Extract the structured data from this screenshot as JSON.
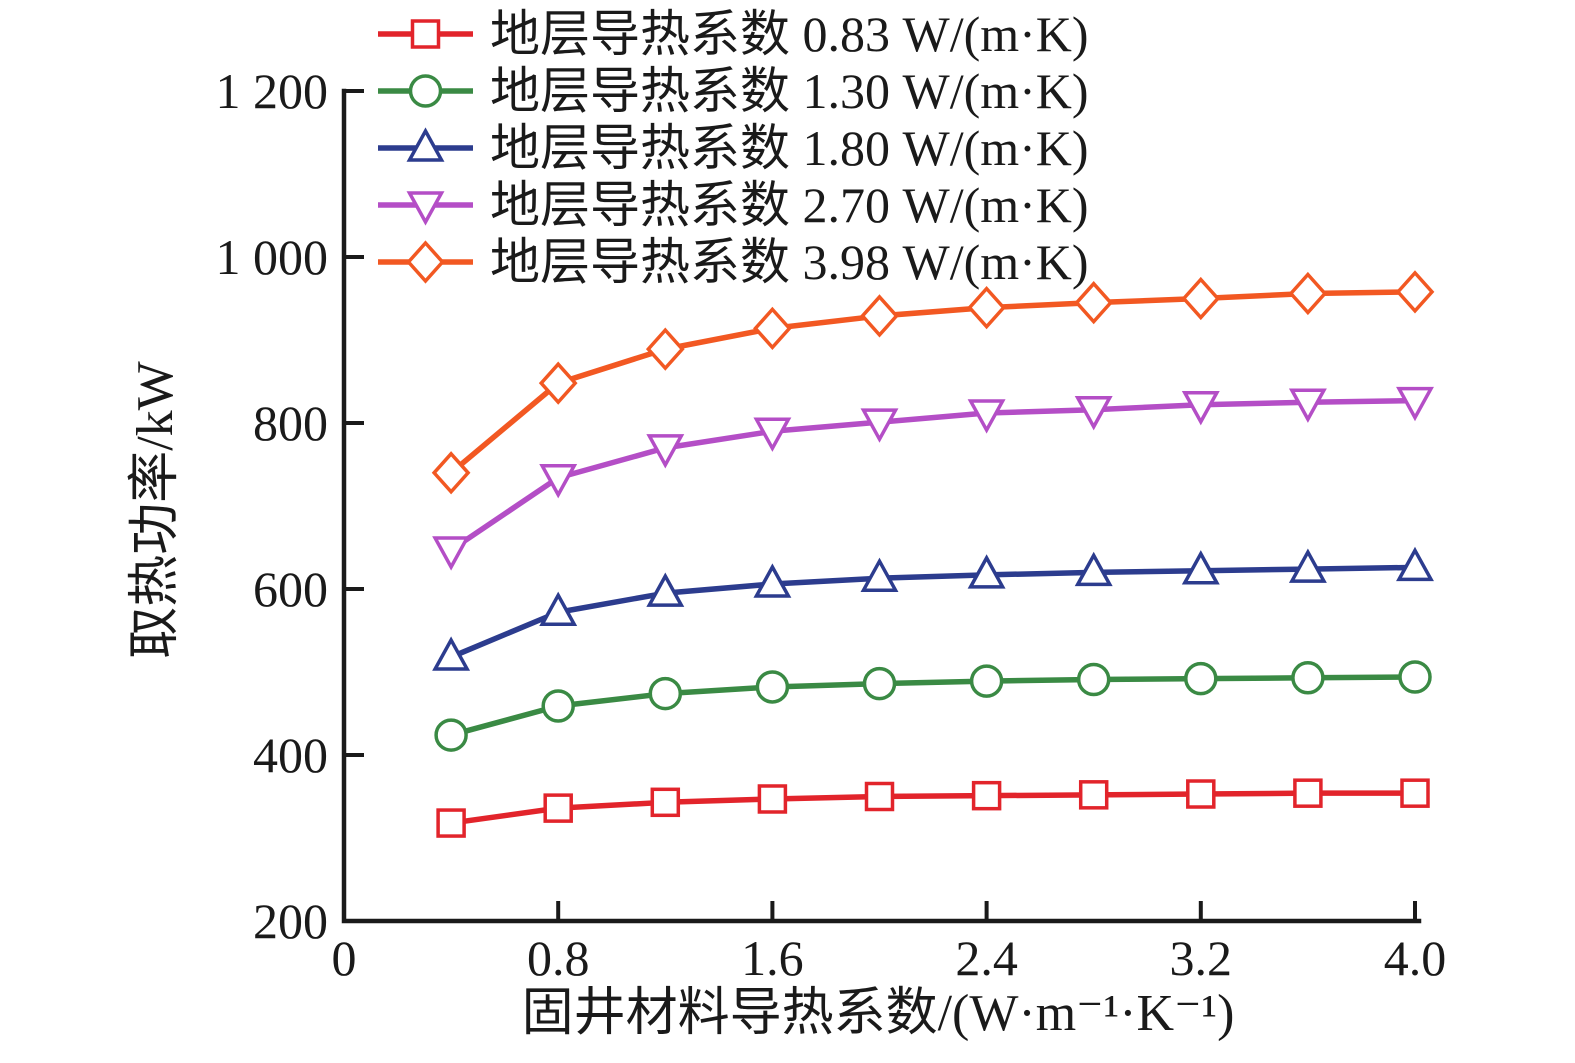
{
  "figure": {
    "background": "#ffffff",
    "axis_color": "#1a1a1a"
  },
  "chart_data": {
    "type": "line",
    "title": "",
    "xlabel": "固井材料导热系数/(W·m⁻¹·K⁻¹)",
    "ylabel": "取热功率/kW",
    "xlim": [
      0,
      4.0
    ],
    "ylim": [
      200,
      1200
    ],
    "x_ticks": [
      0,
      0.8,
      1.6,
      2.4,
      3.2,
      4.0
    ],
    "x_tick_labels": [
      "0",
      "0.8",
      "1.6",
      "2.4",
      "3.2",
      "4.0"
    ],
    "y_ticks": [
      200,
      400,
      600,
      800,
      1000,
      1200
    ],
    "y_tick_labels": [
      "200",
      "400",
      "600",
      "800",
      "1 000",
      "1 200"
    ],
    "grid": false,
    "legend_position": "top-inside",
    "x": [
      0.4,
      0.8,
      1.2,
      1.6,
      2.0,
      2.4,
      2.8,
      3.2,
      3.6,
      4.0
    ],
    "series": [
      {
        "name": "地层导热系数 0.83 W/(m·K)",
        "color": "#e2242b",
        "marker": "square",
        "values": [
          318,
          336,
          343,
          347,
          350,
          351,
          352,
          353,
          354,
          354
        ]
      },
      {
        "name": "地层导热系数 1.30 W/(m·K)",
        "color": "#3a8a44",
        "marker": "circle",
        "values": [
          424,
          459,
          474,
          482,
          486,
          489,
          491,
          492,
          493,
          494
        ]
      },
      {
        "name": "地层导热系数 1.80 W/(m·K)",
        "color": "#2c3c8e",
        "marker": "triangle-up",
        "values": [
          518,
          572,
          595,
          606,
          613,
          617,
          620,
          622,
          624,
          626
        ]
      },
      {
        "name": "地层导热系数 2.70 W/(m·K)",
        "color": "#b44ec6",
        "marker": "triangle-down",
        "values": [
          647,
          734,
          770,
          790,
          801,
          812,
          816,
          822,
          825,
          827
        ]
      },
      {
        "name": "地层导热系数 3.98 W/(m·K)",
        "color": "#f25822",
        "marker": "diamond",
        "values": [
          740,
          848,
          889,
          914,
          929,
          939,
          945,
          950,
          956,
          958
        ]
      }
    ]
  }
}
